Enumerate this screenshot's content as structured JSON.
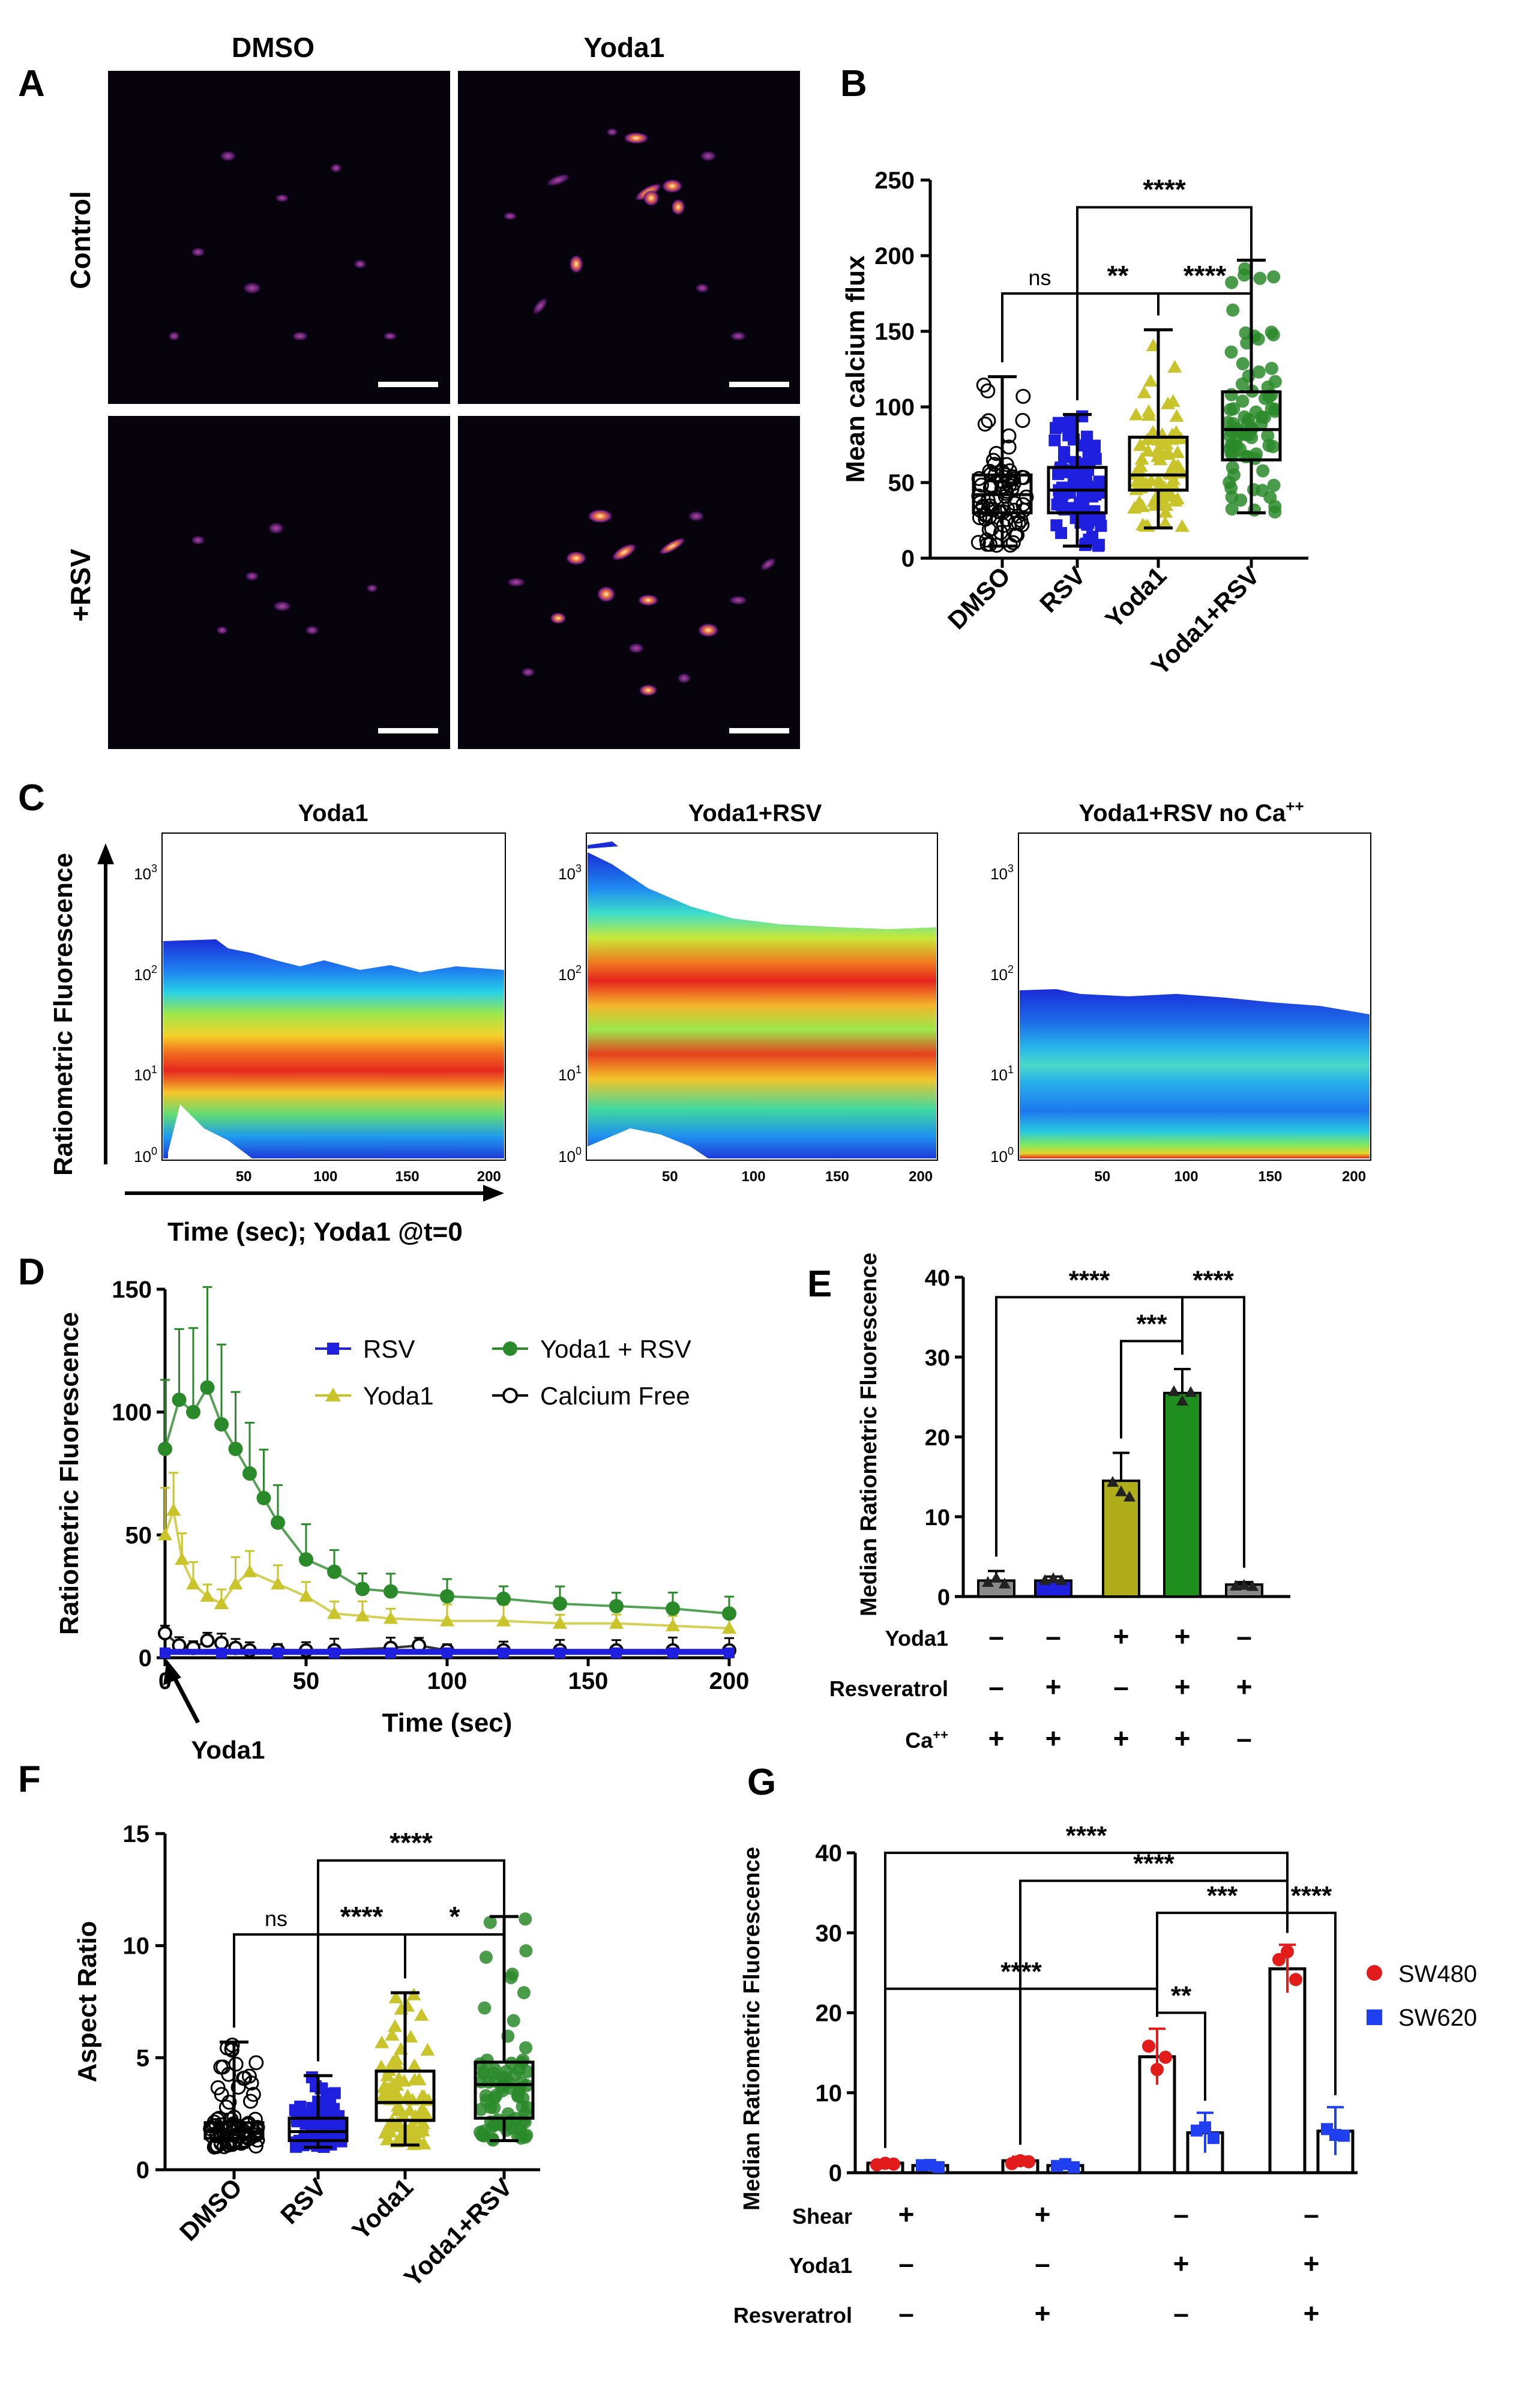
{
  "colors": {
    "dmso": "#000000",
    "rsv": "#1f1fe0",
    "yoda1": "#c8c42a",
    "yoda1_rsv": "#2a8a2a",
    "sw480": "#e21b1b",
    "sw620": "#1f3ff0",
    "bar_rsv": "#1f1fe0",
    "bar_yoda1": "#b0ad1a",
    "bar_yoda1_rsv": "#1e8f1e",
    "bar_dmso": "#8a8a8a"
  },
  "panels": {
    "A": {
      "letter": "A",
      "col_labels": [
        "DMSO",
        "Yoda1"
      ],
      "row_labels": [
        "Control",
        "+RSV"
      ]
    },
    "B": {
      "letter": "B"
    },
    "C": {
      "letter": "C",
      "y_axis_label": "Ratiometric Fluorescence",
      "x_axis_label": "Time (sec); Yoda1 @t=0",
      "titles": [
        "Yoda1",
        "Yoda1+RSV",
        "Yoda1+RSV no Ca"
      ],
      "title_superscript": "++",
      "y_ticks": [
        "10",
        "10",
        "10",
        "10"
      ],
      "y_tick_exps": [
        "3",
        "2",
        "1",
        "0"
      ],
      "x_ticks": [
        "50",
        "100",
        "150",
        "200"
      ]
    },
    "D": {
      "letter": "D",
      "arrow_label": "Yoda1"
    },
    "E": {
      "letter": "E",
      "row_labels": [
        "Yoda1",
        "Resveratrol",
        "Ca"
      ],
      "ca_superscript": "++",
      "rows": [
        [
          "–",
          "–",
          "+",
          "+",
          "–"
        ],
        [
          "–",
          "+",
          "–",
          "+",
          "+"
        ],
        [
          "+",
          "+",
          "+",
          "+",
          "–"
        ]
      ]
    },
    "F": {
      "letter": "F"
    },
    "G": {
      "letter": "G",
      "row_labels": [
        "Shear",
        "Yoda1",
        "Resveratrol"
      ],
      "rows": [
        [
          "+",
          "+",
          "–",
          "–"
        ],
        [
          "–",
          "–",
          "+",
          "+"
        ],
        [
          "–",
          "+",
          "–",
          "+"
        ]
      ]
    }
  },
  "chart_data": [
    {
      "id": "B",
      "type": "box",
      "ylabel": "Mean calcium flux",
      "categories": [
        "DMSO",
        "RSV",
        "Yoda1",
        "Yoda1+RSV"
      ],
      "ylim": [
        0,
        250
      ],
      "yticks": [
        0,
        50,
        100,
        150,
        200,
        250
      ],
      "boxes": [
        {
          "min": 8,
          "q1": 30,
          "median": 42,
          "q3": 55,
          "max": 120
        },
        {
          "min": 8,
          "q1": 30,
          "median": 45,
          "q3": 60,
          "max": 95
        },
        {
          "min": 20,
          "q1": 45,
          "median": 55,
          "q3": 80,
          "max": 151
        },
        {
          "min": 30,
          "q1": 65,
          "median": 85,
          "q3": 110,
          "max": 197
        }
      ],
      "sig": [
        {
          "from": 1,
          "to": 3,
          "label": "****",
          "y": 232
        },
        {
          "from": 0,
          "to": 1,
          "label": "ns",
          "y": 175
        },
        {
          "from": 1,
          "to": 2,
          "label": "**",
          "y": 175
        },
        {
          "from": 2,
          "to": 3,
          "label": "****",
          "y": 175
        }
      ]
    },
    {
      "id": "D",
      "type": "line",
      "xlabel": "Time (sec)",
      "ylabel": "Ratiometric Fluorescence",
      "xlim": [
        0,
        200
      ],
      "ylim": [
        0,
        150
      ],
      "xticks": [
        0,
        50,
        100,
        150,
        200
      ],
      "yticks": [
        0,
        50,
        100,
        150
      ],
      "series": [
        {
          "name": "RSV",
          "marker": "square",
          "x": [
            0,
            20,
            40,
            60,
            80,
            100,
            120,
            140,
            160,
            180,
            200
          ],
          "y": [
            2,
            2,
            2,
            2,
            2,
            2,
            2,
            2,
            2,
            2,
            2
          ]
        },
        {
          "name": "Yoda1 + RSV",
          "marker": "circle",
          "x": [
            0,
            5,
            10,
            15,
            20,
            25,
            30,
            35,
            40,
            50,
            60,
            70,
            80,
            100,
            120,
            140,
            160,
            180,
            200
          ],
          "y": [
            85,
            105,
            100,
            110,
            95,
            85,
            75,
            65,
            55,
            40,
            35,
            28,
            27,
            25,
            24,
            22,
            21,
            20,
            18
          ]
        },
        {
          "name": "Yoda1",
          "marker": "triangle",
          "x": [
            0,
            3,
            6,
            10,
            15,
            20,
            25,
            30,
            40,
            50,
            60,
            70,
            80,
            100,
            120,
            140,
            160,
            180,
            200
          ],
          "y": [
            50,
            60,
            40,
            30,
            25,
            22,
            30,
            35,
            30,
            25,
            18,
            17,
            16,
            15,
            15,
            14,
            14,
            13,
            12
          ]
        },
        {
          "name": "Calcium Free",
          "marker": "open-circle",
          "x": [
            0,
            5,
            10,
            15,
            20,
            25,
            30,
            40,
            50,
            60,
            80,
            90,
            100,
            120,
            140,
            160,
            180,
            200
          ],
          "y": [
            10,
            5,
            4,
            7,
            6,
            4,
            3,
            3,
            3,
            3,
            4,
            5,
            3,
            3,
            3,
            3,
            3,
            3
          ]
        }
      ]
    },
    {
      "id": "E",
      "type": "bar",
      "ylabel": "Median Ratiometric Fluorescence",
      "ylim": [
        0,
        40
      ],
      "yticks": [
        0,
        10,
        20,
        30,
        40
      ],
      "values": [
        2.0,
        2.0,
        14.5,
        25.5,
        1.5
      ],
      "errors": [
        1.2,
        0.5,
        3.5,
        3.0,
        0.3
      ],
      "sig": [
        {
          "from": 0,
          "to": 3,
          "label": "****",
          "y": 37.5
        },
        {
          "from": 3,
          "to": 4,
          "label": "****",
          "y": 37.5
        },
        {
          "from": 2,
          "to": 3,
          "label": "***",
          "y": 32
        }
      ]
    },
    {
      "id": "F",
      "type": "box",
      "ylabel": "Aspect Ratio",
      "categories": [
        "DMSO",
        "RSV",
        "Yoda1",
        "Yoda1+RSV"
      ],
      "ylim": [
        0,
        15
      ],
      "yticks": [
        0,
        5,
        10,
        15
      ],
      "boxes": [
        {
          "min": 1.0,
          "q1": 1.4,
          "median": 1.7,
          "q3": 2.1,
          "max": 5.7
        },
        {
          "min": 1.0,
          "q1": 1.3,
          "median": 1.7,
          "q3": 2.3,
          "max": 4.2
        },
        {
          "min": 1.1,
          "q1": 2.2,
          "median": 3.0,
          "q3": 4.4,
          "max": 7.9
        },
        {
          "min": 1.3,
          "q1": 2.3,
          "median": 3.8,
          "q3": 4.8,
          "max": 11.3
        }
      ],
      "sig": [
        {
          "from": 1,
          "to": 3,
          "label": "****",
          "y": 13.8
        },
        {
          "from": 0,
          "to": 1,
          "label": "ns",
          "y": 10.5
        },
        {
          "from": 1,
          "to": 2,
          "label": "****",
          "y": 10.5
        },
        {
          "from": 2,
          "to": 3,
          "label": "*",
          "y": 10.5
        }
      ]
    },
    {
      "id": "G",
      "type": "bar",
      "ylabel": "Median Ratiometric Fluorescence",
      "ylim": [
        0,
        40
      ],
      "yticks": [
        0,
        10,
        20,
        30,
        40
      ],
      "series": [
        {
          "name": "SW480",
          "values": [
            1.2,
            1.5,
            14.5,
            25.5
          ],
          "errors": [
            0.4,
            0.5,
            3.5,
            3.0
          ]
        },
        {
          "name": "SW620",
          "values": [
            0.9,
            0.9,
            5.0,
            5.2
          ],
          "errors": [
            0.3,
            0.3,
            2.5,
            3.0
          ]
        }
      ],
      "sig": [
        {
          "from": "0a",
          "to": "3a",
          "label": "****",
          "y": 40
        },
        {
          "from": "1a",
          "to": "3a",
          "label": "****",
          "y": 36.5
        },
        {
          "from": "2a",
          "to": "3a",
          "label": "***",
          "y": 32.5
        },
        {
          "from": "3a",
          "to": "3b",
          "label": "****",
          "y": 32.5
        },
        {
          "from": "0a",
          "to": "2a",
          "label": "****",
          "y": 23
        },
        {
          "from": "2a",
          "to": "2b",
          "label": "**",
          "y": 20
        }
      ]
    }
  ]
}
